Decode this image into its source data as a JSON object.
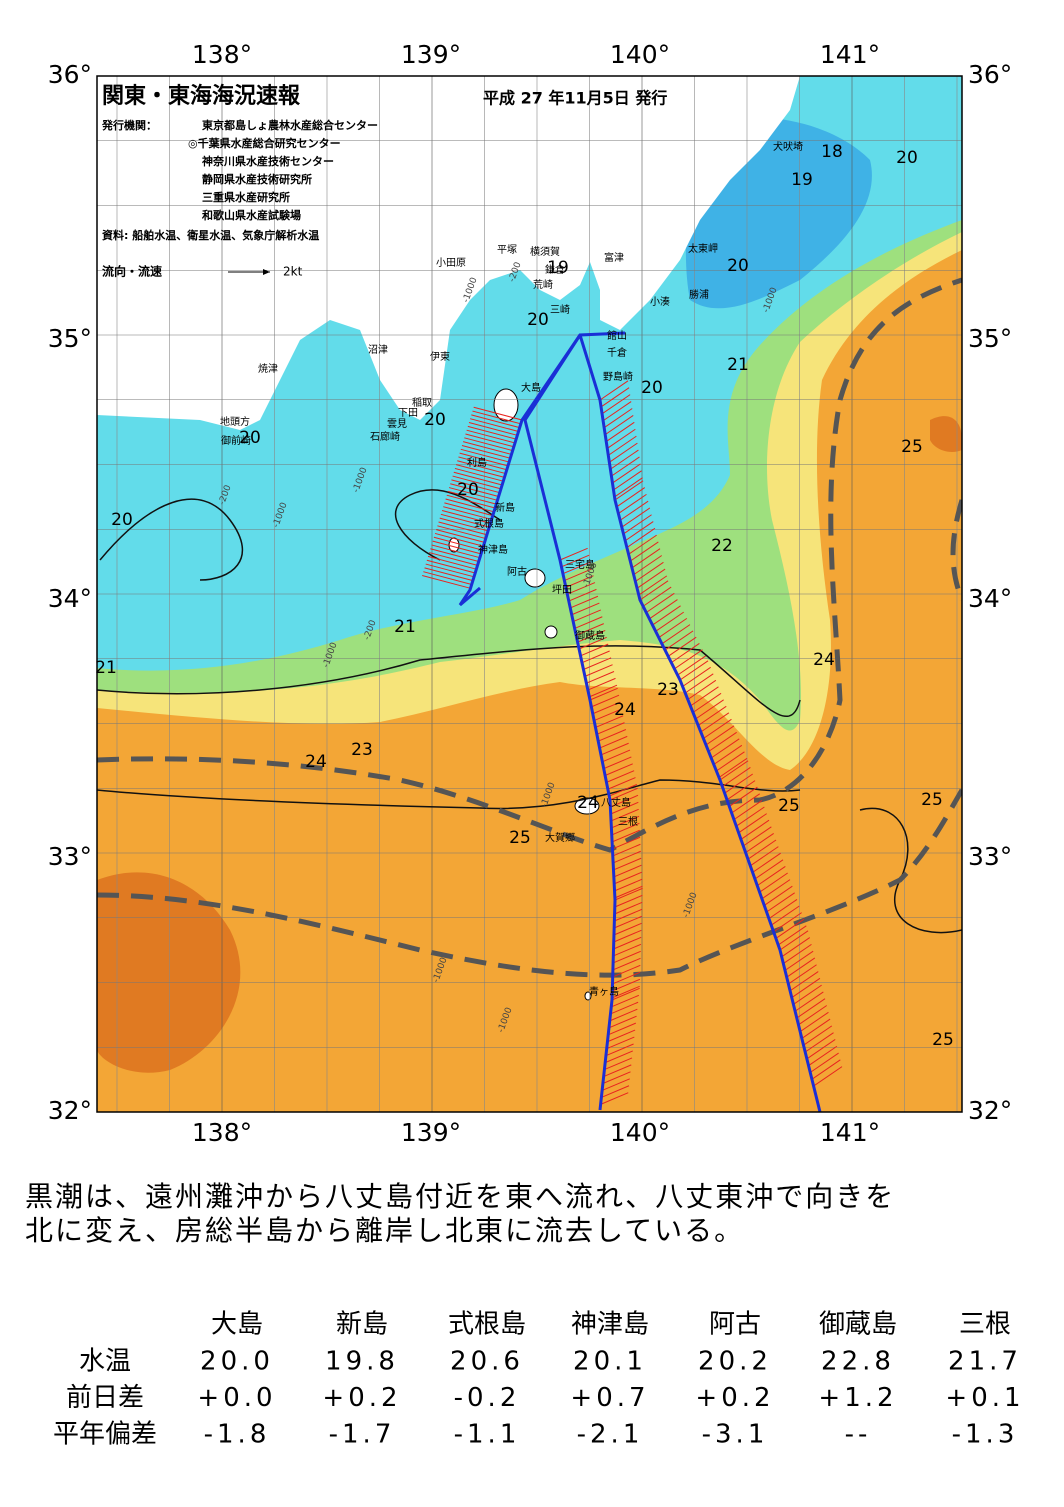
{
  "header": {
    "title": "関東・東海海況速報",
    "date": "平成 27 年11月5日 発行",
    "issuer_label": "発行機関：",
    "issuers": [
      "東京都島しょ農林水産総合センター",
      "◎千葉県水産総合研究センター",
      "神奈川県水産技術センター",
      "静岡県水産技術研究所",
      "三重県水産研究所",
      "和歌山県水産試験場"
    ],
    "source": "資料: 船舶水温、衛星水温、気象庁解析水温",
    "legend_label": "流向・流速",
    "legend_scale": "2kt"
  },
  "map": {
    "lon_labels": [
      "138°",
      "139°",
      "140°",
      "141°"
    ],
    "lat_labels": [
      "36°",
      "35°",
      "34°",
      "33°",
      "32°"
    ],
    "place_names": [
      "犬吠埼",
      "太東岬",
      "勝浦",
      "小湊",
      "富津",
      "横須賀",
      "平塚",
      "小田原",
      "鎌倉",
      "荒崎",
      "三崎",
      "館山",
      "千倉",
      "野島崎",
      "大島",
      "沼津",
      "伊東",
      "稲取",
      "下田",
      "雲見",
      "石廊崎",
      "焼津",
      "地頭方",
      "御前崎",
      "利島",
      "新島",
      "式根島",
      "神津島",
      "三宅島",
      "阿古",
      "坪田",
      "御蔵島",
      "八丈島",
      "三根",
      "大賀郷",
      "青ヶ島"
    ],
    "contour_labels": [
      "18",
      "19",
      "20",
      "20",
      "19",
      "20",
      "21",
      "20",
      "20",
      "20",
      "20",
      "20",
      "21",
      "22",
      "24",
      "23",
      "24",
      "25",
      "23",
      "24",
      "25",
      "25",
      "24",
      "25",
      "25",
      "21"
    ],
    "depth_labels": [
      "-200",
      "-1000",
      "-1000",
      "-200",
      "-1000",
      "-1000",
      "-200",
      "-1000",
      "-1000",
      "-1000",
      "-1000",
      "-1000",
      "-1000"
    ]
  },
  "summary": [
    "黒潮は、遠州灘沖から八丈島付近を東へ流れ、八丈東沖で向きを",
    "北に変え、房総半島から離岸し北東に流去している。"
  ],
  "table": {
    "columns": [
      "大島",
      "新島",
      "式根島",
      "神津島",
      "阿古",
      "御蔵島",
      "三根"
    ],
    "rows": [
      {
        "label": "水温",
        "cells": [
          "20.0",
          "19.8",
          "20.6",
          "20.1",
          "20.2",
          "22.8",
          "21.7"
        ]
      },
      {
        "label": "前日差",
        "cells": [
          "+0.0",
          "+0.2",
          "-0.2",
          "+0.7",
          "+0.2",
          "+1.2",
          "+0.1"
        ]
      },
      {
        "label": "平年偏差",
        "cells": [
          "-1.8",
          "-1.7",
          "-1.1",
          "-2.1",
          "-3.1",
          "--",
          "-1.3"
        ]
      }
    ]
  }
}
